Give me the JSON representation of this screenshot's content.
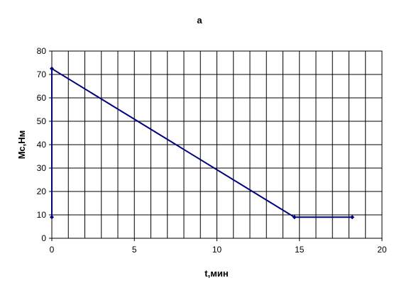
{
  "chart_data": {
    "type": "line",
    "title": "а",
    "xlabel": "t,мин",
    "ylabel": "Мс,Нм",
    "xlim": [
      0,
      20
    ],
    "ylim": [
      0,
      80
    ],
    "x_ticks": [
      0,
      5,
      10,
      15,
      20
    ],
    "y_ticks": [
      0,
      10,
      20,
      30,
      40,
      50,
      60,
      70,
      80
    ],
    "x_minor_step": 1,
    "grid": true,
    "legend": "none",
    "series": [
      {
        "color": "#000080",
        "x": [
          0,
          0,
          14.7,
          18.2
        ],
        "y": [
          9,
          72.5,
          9,
          9
        ]
      }
    ]
  }
}
